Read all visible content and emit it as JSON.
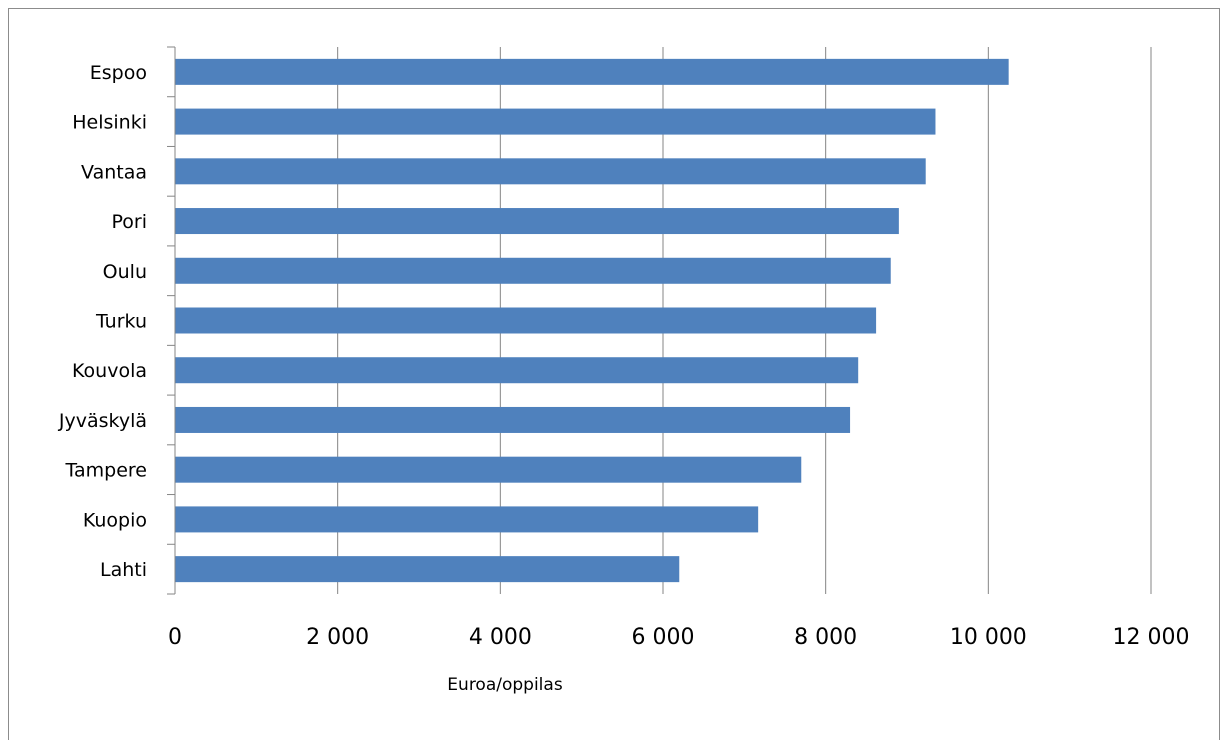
{
  "chart_data": {
    "type": "bar",
    "orientation": "horizontal",
    "categories": [
      "Espoo",
      "Helsinki",
      "Vantaa",
      "Pori",
      "Oulu",
      "Turku",
      "Kouvola",
      "Jyväskylä",
      "Tampere",
      "Kuopio",
      "Lahti"
    ],
    "values": [
      10250,
      9350,
      9230,
      8900,
      8800,
      8620,
      8400,
      8300,
      7700,
      7170,
      6200
    ],
    "xlabel": "Euroa/oppilas",
    "ylabel": "",
    "xlim": [
      0,
      12000
    ],
    "x_ticks": [
      0,
      2000,
      4000,
      6000,
      8000,
      10000,
      12000
    ],
    "x_tick_labels": [
      "0",
      "2 000",
      "4 000",
      "6 000",
      "8 000",
      "10 000",
      "12 000"
    ],
    "grid": "vertical major gridlines",
    "bar_color": "#4f81bd"
  }
}
